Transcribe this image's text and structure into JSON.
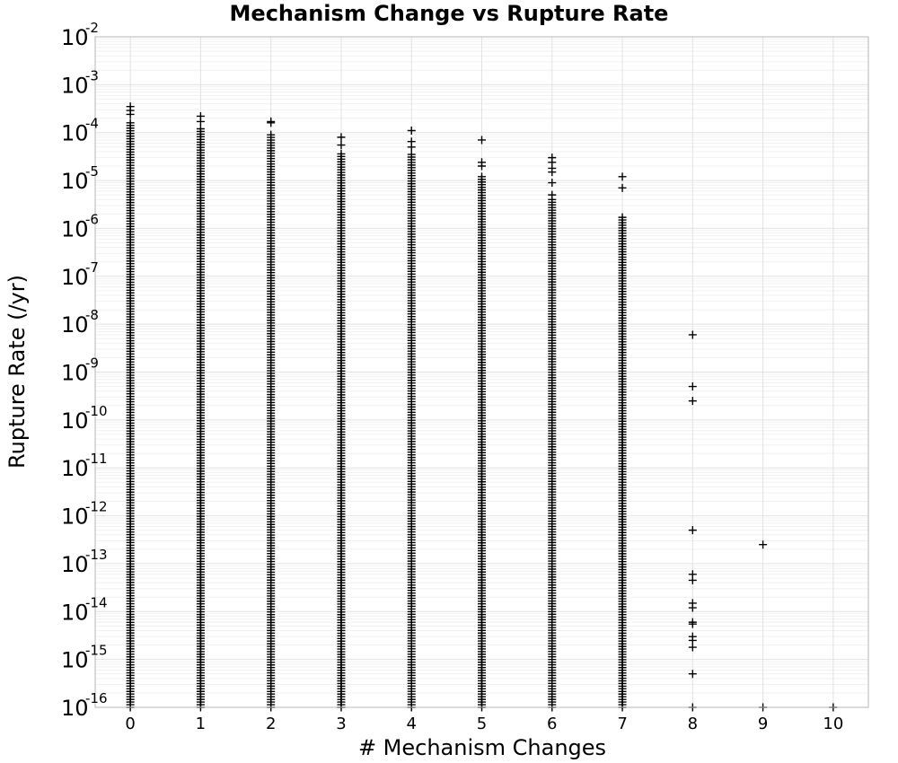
{
  "chart_data": {
    "type": "scatter",
    "title": "Mechanism Change vs Rupture Rate",
    "xlabel": "# Mechanism Changes",
    "ylabel": "Rupture Rate (/yr)",
    "xlim": [
      -0.5,
      10.5
    ],
    "ylim": [
      1e-16,
      0.01
    ],
    "y_scale": "log",
    "grid": true,
    "marker": "+",
    "marker_color": "#000000",
    "x_ticks": [
      "0",
      "1",
      "2",
      "3",
      "4",
      "5",
      "6",
      "7",
      "8",
      "9",
      "10"
    ],
    "y_tick_base": "10",
    "y_tick_exponents": [
      "-16",
      "-15",
      "-14",
      "-13",
      "-12",
      "-11",
      "-10",
      "-9",
      "-8",
      "-7",
      "-6",
      "-5",
      "-4",
      "-3",
      "-2"
    ],
    "columns": [
      {
        "x": 0,
        "dense_range": [
          1e-16,
          0.00016
        ],
        "outliers": [
          0.00035,
          0.00029,
          0.00024
        ]
      },
      {
        "x": 1,
        "dense_range": [
          1e-16,
          0.00012
        ],
        "outliers": [
          0.00022,
          0.00017
        ]
      },
      {
        "x": 2,
        "dense_range": [
          1e-16,
          9e-05
        ],
        "outliers": [
          0.00017,
          0.00016
        ]
      },
      {
        "x": 3,
        "dense_range": [
          1e-16,
          3.6e-05
        ],
        "outliers": [
          8e-05,
          5.5e-05
        ]
      },
      {
        "x": 4,
        "dense_range": [
          1e-16,
          3.5e-05
        ],
        "outliers": [
          0.00011,
          6.5e-05,
          5e-05
        ]
      },
      {
        "x": 5,
        "dense_range": [
          1e-16,
          1.2e-05
        ],
        "outliers": [
          7e-05,
          2.4e-05,
          2e-05
        ]
      },
      {
        "x": 6,
        "dense_range": [
          1e-16,
          4e-06
        ],
        "outliers": [
          3e-05,
          2.4e-05,
          1.8e-05,
          1.5e-05,
          9e-06,
          5e-06
        ]
      },
      {
        "x": 7,
        "dense_range": [
          1e-16,
          1.7e-06
        ],
        "outliers": [
          1.2e-05,
          7e-06
        ]
      },
      {
        "x": 8,
        "dense_range": null,
        "outliers": [
          6e-09,
          5e-10,
          2.5e-10,
          5e-13,
          6e-14,
          4.5e-14,
          1.5e-14,
          1.2e-14,
          6e-15,
          5.5e-15,
          3e-15,
          2.5e-15,
          1.8e-15,
          5e-16,
          1e-16
        ]
      },
      {
        "x": 9,
        "dense_range": null,
        "outliers": [
          2.5e-13,
          1e-16
        ]
      },
      {
        "x": 10,
        "dense_range": null,
        "outliers": [
          1e-16
        ]
      }
    ]
  }
}
